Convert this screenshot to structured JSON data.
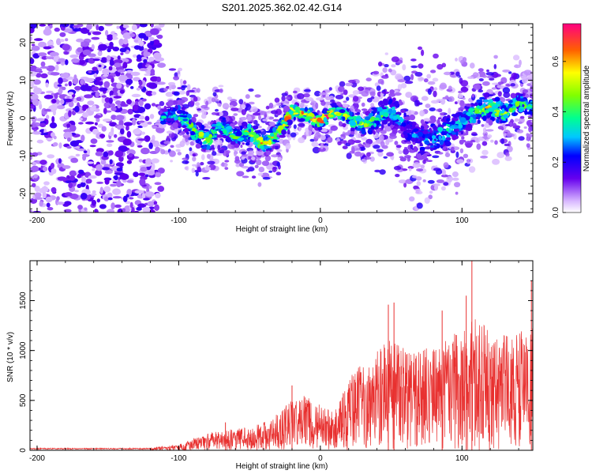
{
  "chart_data": [
    {
      "type": "heatmap",
      "title": "S201.2025.362.02.42.G14",
      "xlabel": "Height of straight line (km)",
      "ylabel": "Frequency (Hz)",
      "xlim": [
        -205,
        150
      ],
      "ylim": [
        -25,
        25
      ],
      "xticks": [
        "-200",
        "-100",
        "0",
        "100"
      ],
      "yticks": [
        "-20",
        "-10",
        "0",
        "10",
        "20"
      ],
      "colorbar": {
        "label": "Normalized spectral amplitude",
        "range": [
          0.0,
          0.75
        ],
        "ticks": [
          "0.0",
          "0.2",
          "0.4",
          "0.6"
        ]
      },
      "noise_region_x": [
        -205,
        -112
      ],
      "ridge": {
        "x": [
          -112,
          -100,
          -90,
          -80,
          -70,
          -60,
          -50,
          -40,
          -30,
          -20,
          -10,
          0,
          10,
          20,
          30,
          40,
          50,
          60,
          70,
          80,
          90,
          100,
          110,
          120,
          130,
          140,
          150
        ],
        "freq": [
          0,
          1,
          -3,
          -6,
          -2,
          -5,
          -4,
          -7,
          -4,
          2,
          1,
          -1,
          2,
          0,
          -2,
          0,
          2,
          -2,
          -6,
          -5,
          -3,
          -1,
          2,
          3,
          1,
          4,
          3
        ],
        "width": [
          5,
          7,
          7,
          6,
          6,
          5,
          6,
          6,
          6,
          4,
          4,
          4,
          4,
          5,
          6,
          7,
          9,
          11,
          13,
          12,
          10,
          9,
          7,
          7,
          7,
          7,
          6
        ],
        "amplitude": [
          0.3,
          0.35,
          0.45,
          0.5,
          0.4,
          0.45,
          0.5,
          0.55,
          0.5,
          0.65,
          0.6,
          0.7,
          0.55,
          0.45,
          0.5,
          0.4,
          0.35,
          0.25,
          0.25,
          0.3,
          0.35,
          0.3,
          0.45,
          0.5,
          0.45,
          0.4,
          0.4
        ]
      }
    },
    {
      "type": "line",
      "xlabel": "Height of straight line (km)",
      "ylabel": "SNR (10 * v/v)",
      "xlim": [
        -205,
        150
      ],
      "ylim": [
        0,
        1900
      ],
      "xticks": [
        "-200",
        "-100",
        "0",
        "100"
      ],
      "yticks": [
        "0",
        "500",
        "1000",
        "1500"
      ],
      "color": "#e8302f",
      "envelope": {
        "x": [
          -205,
          -120,
          -100,
          -90,
          -80,
          -70,
          -60,
          -50,
          -40,
          -30,
          -20,
          -10,
          0,
          10,
          20,
          30,
          40,
          50,
          60,
          70,
          80,
          90,
          100,
          110,
          120,
          130,
          140,
          150
        ],
        "max": [
          20,
          25,
          60,
          120,
          170,
          200,
          220,
          230,
          280,
          380,
          520,
          560,
          460,
          380,
          720,
          880,
          1000,
          1150,
          1050,
          1000,
          1050,
          1150,
          1200,
          1350,
          1200,
          1150,
          1200,
          1250
        ]
      },
      "peaks": [
        {
          "x": -67,
          "y": 280
        },
        {
          "x": -20,
          "y": 650
        },
        {
          "x": 48,
          "y": 1460
        },
        {
          "x": 52,
          "y": 1480
        },
        {
          "x": 86,
          "y": 1400
        },
        {
          "x": 103,
          "y": 1550
        },
        {
          "x": 107,
          "y": 1910
        },
        {
          "x": 149,
          "y": 1700
        }
      ]
    }
  ]
}
